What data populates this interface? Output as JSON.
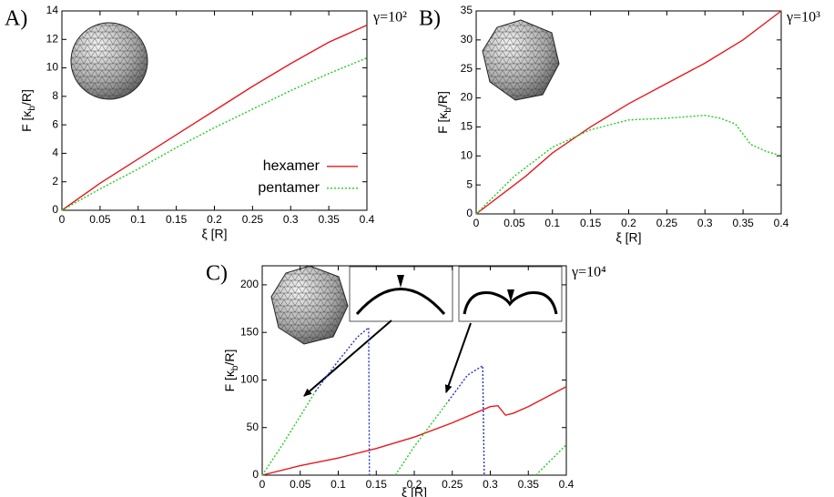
{
  "chart_data": [
    {
      "type": "line",
      "label": "A)",
      "gamma": "γ=10²",
      "xlabel": "ξ [R]",
      "ylabel": [
        "F [κ",
        "b",
        "/R]"
      ],
      "xlim": [
        0,
        0.4
      ],
      "xticks": [
        0,
        0.05,
        0.1,
        0.15,
        0.2,
        0.25,
        0.3,
        0.35,
        0.4
      ],
      "ylim": [
        0,
        14
      ],
      "yticks": [
        0,
        2,
        4,
        6,
        8,
        10,
        12,
        14
      ],
      "legend": "right",
      "series": [
        {
          "name": "hexamer",
          "color": "#e8171c",
          "dash": "solid",
          "x": [
            0,
            0.05,
            0.1,
            0.15,
            0.2,
            0.25,
            0.3,
            0.35,
            0.4
          ],
          "values": [
            0,
            1.9,
            3.6,
            5.3,
            7.0,
            8.7,
            10.3,
            11.8,
            13.0
          ]
        },
        {
          "name": "pentamer",
          "color": "#22cc22",
          "dash": "dotted",
          "x": [
            0,
            0.05,
            0.1,
            0.15,
            0.2,
            0.25,
            0.3,
            0.35,
            0.4
          ],
          "values": [
            0,
            1.5,
            2.9,
            4.4,
            5.8,
            7.1,
            8.4,
            9.6,
            10.7
          ]
        }
      ]
    },
    {
      "type": "line",
      "label": "B)",
      "gamma": "γ=10³",
      "xlabel": "ξ [R]",
      "ylabel": [
        "F [κ",
        "b",
        "/R]"
      ],
      "xlim": [
        0,
        0.4
      ],
      "xticks": [
        0,
        0.05,
        0.1,
        0.15,
        0.2,
        0.25,
        0.3,
        0.35,
        0.4
      ],
      "ylim": [
        0,
        35
      ],
      "yticks": [
        0,
        5,
        10,
        15,
        20,
        25,
        30,
        35
      ],
      "series": [
        {
          "color": "#e8171c",
          "dash": "solid",
          "x": [
            0,
            0.05,
            0.065,
            0.1,
            0.15,
            0.2,
            0.25,
            0.3,
            0.35,
            0.4
          ],
          "values": [
            0,
            5,
            6.5,
            10.5,
            15,
            19,
            22.5,
            26,
            30,
            35
          ]
        },
        {
          "color": "#22cc22",
          "dash": "dotted",
          "x": [
            0,
            0.05,
            0.1,
            0.15,
            0.2,
            0.25,
            0.3,
            0.32,
            0.34,
            0.36,
            0.38,
            0.4
          ],
          "values": [
            0,
            6.5,
            11.5,
            14.5,
            16.2,
            16.5,
            17,
            16.5,
            15.5,
            12,
            10.8,
            10
          ]
        }
      ]
    },
    {
      "type": "line",
      "label": "C)",
      "gamma": "γ=10⁴",
      "xlabel": "ξ [R]",
      "ylabel": [
        "F [κ",
        "b",
        "/R]"
      ],
      "xlim": [
        0,
        0.4
      ],
      "xticks": [
        0,
        0.05,
        0.1,
        0.15,
        0.2,
        0.25,
        0.3,
        0.35,
        0.4
      ],
      "ylim": [
        0,
        220
      ],
      "yticks": [
        0,
        50,
        100,
        150,
        200
      ],
      "series": [
        {
          "color": "#e8171c",
          "dash": "solid",
          "x": [
            0,
            0.05,
            0.1,
            0.15,
            0.2,
            0.25,
            0.3,
            0.31,
            0.32,
            0.33,
            0.35,
            0.4
          ],
          "values": [
            0,
            10,
            18,
            28,
            40,
            55,
            72,
            73,
            63,
            65,
            72,
            93
          ]
        },
        {
          "color": "#22cc22",
          "dash": "dotted",
          "x": [
            0,
            0.025,
            0.05,
            0.07
          ],
          "values": [
            0,
            30,
            62,
            88
          ]
        },
        {
          "color": "#22cc22",
          "dash": "dotted",
          "x": [
            0.175,
            0.2,
            0.245
          ],
          "values": [
            0,
            30,
            78
          ]
        },
        {
          "color": "#22cc22",
          "dash": "dotted",
          "x": [
            0.36,
            0.4
          ],
          "values": [
            0,
            32
          ]
        },
        {
          "color": "#2233cc",
          "dash": "dotted",
          "x": [
            0.07,
            0.1,
            0.125,
            0.14,
            0.141
          ],
          "values": [
            88,
            120,
            145,
            155,
            0
          ]
        },
        {
          "color": "#2233cc",
          "dash": "dotted",
          "x": [
            0.245,
            0.27,
            0.29,
            0.292
          ],
          "values": [
            78,
            105,
            115,
            0
          ]
        }
      ]
    }
  ]
}
